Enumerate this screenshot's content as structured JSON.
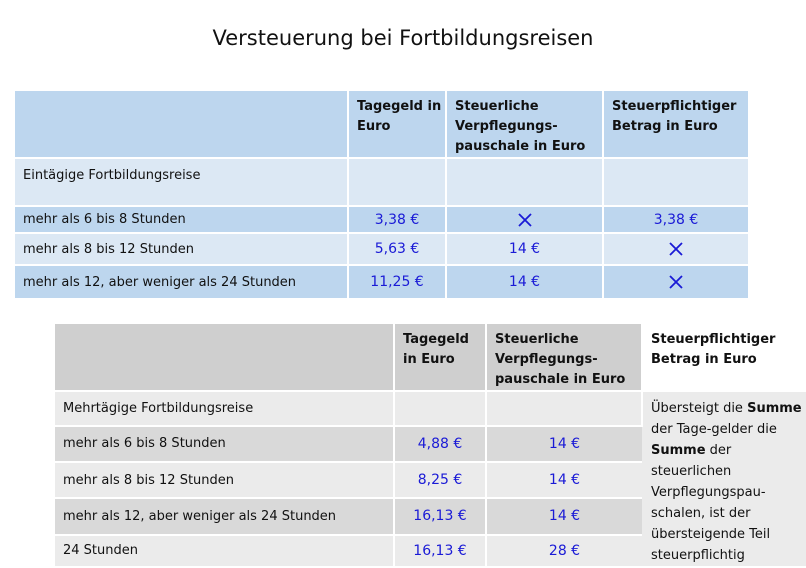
{
  "title": "Versteuerung bei Fortbildungsreisen",
  "colors": {
    "value_text": "#1a1ad6",
    "table1_dark": "#bdd6ee",
    "table1_light": "#dce8f4",
    "table2_dark": "#d9d9d9",
    "table2_light": "#ebebeb"
  },
  "table1": {
    "headers": [
      "",
      "Tagegeld in Euro",
      "Steuerliche Verpflegungs-pauschale in Euro",
      "Steuerpflichtiger Betrag in Euro"
    ],
    "section_label": "Eintägige Fortbildungsreise",
    "rows": [
      {
        "label": "mehr als 6 bis 8 Stunden",
        "tagegeld": "3,38 €",
        "pauschale": "×",
        "betrag": "3,38 €"
      },
      {
        "label": "mehr als 8 bis 12 Stunden",
        "tagegeld": "5,63 €",
        "pauschale": "14 €",
        "betrag": "×"
      },
      {
        "label": "mehr als 12, aber weniger als 24 Stunden",
        "tagegeld": "11,25 €",
        "pauschale": "14 €",
        "betrag": "×"
      }
    ]
  },
  "table2": {
    "headers": [
      "",
      "Tagegeld in Euro",
      "Steuerliche Verpflegungs-pauschale in Euro",
      "Steuerpflichtiger Betrag in Euro"
    ],
    "section_label": "Mehrtägige Fortbildungsreise",
    "rows": [
      {
        "label": "mehr als 6 bis 8 Stunden",
        "tagegeld": "4,88 €",
        "pauschale": "14 €"
      },
      {
        "label": "mehr als 8 bis 12 Stunden",
        "tagegeld": "8,25 €",
        "pauschale": "14 €"
      },
      {
        "label": "mehr als 12, aber weniger als 24 Stunden",
        "tagegeld": "16,13 €",
        "pauschale": "14 €"
      },
      {
        "label": "24 Stunden",
        "tagegeld": "16,13 €",
        "pauschale": "28 €"
      }
    ],
    "note": {
      "p1": "Übersteigt die",
      "b1": "Summe",
      "p2": "der Tage-gelder die",
      "b2": "Summe",
      "p3": "der steuerlichen Verpflegungspau-schalen, ist der übersteigende Teil steuerpflichtig"
    }
  }
}
